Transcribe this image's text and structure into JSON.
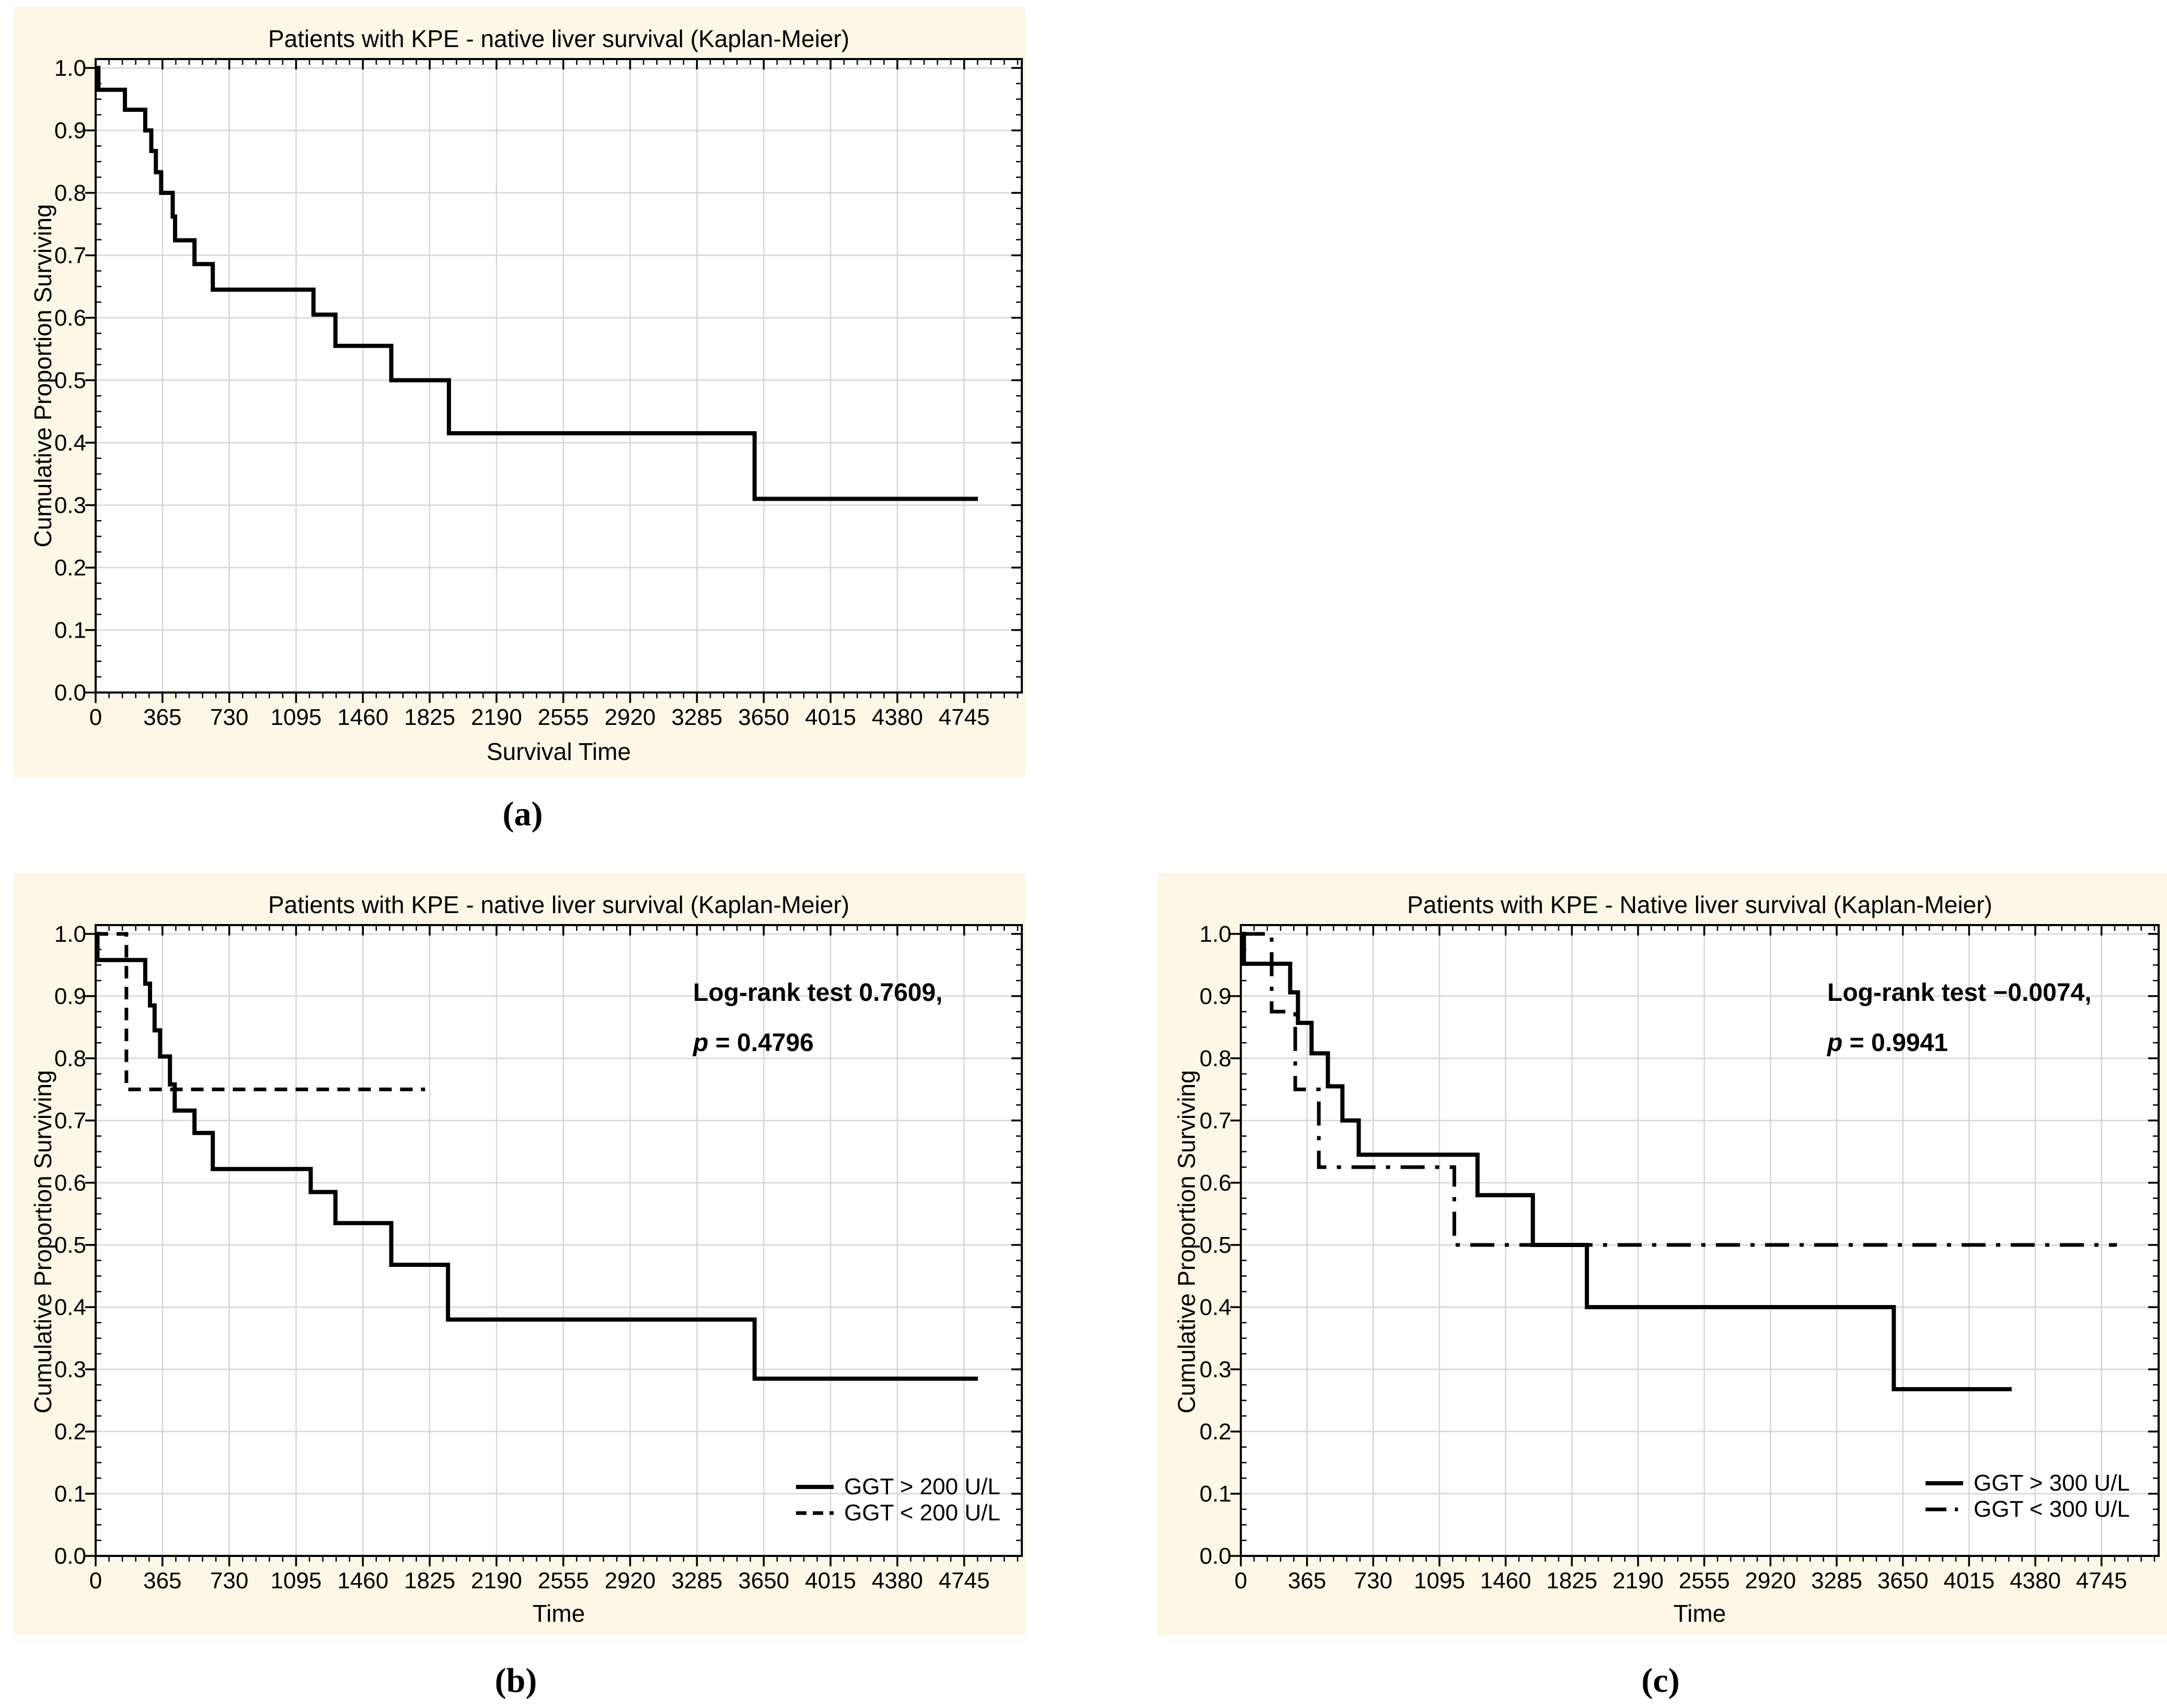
{
  "figure": {
    "panel_labels": [
      "(a)",
      "(b)",
      "(c)"
    ],
    "colors": {
      "page_background": "#ffffff",
      "panel_background": "#fcf7e7",
      "plot_background": "#ffffff",
      "grid": "#d6d6d6",
      "line": "#000000"
    }
  },
  "chart_data": [
    {
      "type": "line",
      "subtype": "kaplan-meier-step",
      "panel_label": "(a)",
      "title": "Patients with KPE - native liver survival (Kaplan-Meier)",
      "xlabel": "Survival Time",
      "ylabel": "Cumulative Proportion Surviving",
      "xlim": [
        0,
        5060
      ],
      "ylim": [
        0,
        1.0142
      ],
      "xticks": [
        0,
        365,
        730,
        1095,
        1460,
        1825,
        2190,
        2555,
        2920,
        3285,
        3650,
        4015,
        4380,
        4745
      ],
      "yticks": [
        0.0,
        0.1,
        0.2,
        0.3,
        0.4,
        0.5,
        0.6,
        0.7,
        0.8,
        0.9,
        1.0
      ],
      "x_minor_step": 73,
      "y_minor_step": 0.025,
      "grid": true,
      "legend": null,
      "annotation": null,
      "series": [
        {
          "style": "solid",
          "end_x": 4820,
          "points": [
            [
              0,
              1.0
            ],
            [
              15,
              0.965
            ],
            [
              160,
              0.933
            ],
            [
              271,
              0.9
            ],
            [
              304,
              0.867
            ],
            [
              329,
              0.833
            ],
            [
              358,
              0.8
            ],
            [
              421,
              0.762
            ],
            [
              434,
              0.724
            ],
            [
              540,
              0.686
            ],
            [
              640,
              0.645
            ],
            [
              1190,
              0.605
            ],
            [
              1310,
              0.555
            ],
            [
              1615,
              0.5
            ],
            [
              1930,
              0.415
            ],
            [
              3600,
              0.31
            ]
          ]
        }
      ]
    },
    {
      "type": "line",
      "subtype": "kaplan-meier-step",
      "panel_label": "(b)",
      "title": "Patients with KPE - native liver survival (Kaplan-Meier)",
      "xlabel": "Time",
      "ylabel": "Cumulative Proportion Surviving",
      "xlim": [
        0,
        5060
      ],
      "ylim": [
        0,
        1.0142
      ],
      "xticks": [
        0,
        365,
        730,
        1095,
        1460,
        1825,
        2190,
        2555,
        2920,
        3285,
        3650,
        4015,
        4380,
        4745
      ],
      "yticks": [
        0.0,
        0.1,
        0.2,
        0.3,
        0.4,
        0.5,
        0.6,
        0.7,
        0.8,
        0.9,
        1.0
      ],
      "x_minor_step": 73,
      "y_minor_step": 0.025,
      "grid": true,
      "annotation": {
        "line1": "Log-rank test  0.7609,",
        "p_symbol": "p",
        "line2": " = 0.4796"
      },
      "legend": {
        "entries": [
          {
            "label": "GGT > 200 U/L",
            "style": "solid"
          },
          {
            "label": "GGT < 200 U/L",
            "style": "dashed"
          }
        ]
      },
      "series": [
        {
          "name": "GGT > 200 U/L",
          "style": "solid",
          "end_x": 4820,
          "points": [
            [
              0,
              1.0
            ],
            [
              10,
              0.958
            ],
            [
              271,
              0.92
            ],
            [
              297,
              0.885
            ],
            [
              322,
              0.845
            ],
            [
              352,
              0.803
            ],
            [
              406,
              0.758
            ],
            [
              432,
              0.716
            ],
            [
              540,
              0.68
            ],
            [
              640,
              0.622
            ],
            [
              1175,
              0.585
            ],
            [
              1310,
              0.535
            ],
            [
              1615,
              0.468
            ],
            [
              1925,
              0.38
            ],
            [
              3600,
              0.285
            ]
          ]
        },
        {
          "name": "GGT < 200 U/L",
          "style": "dashed",
          "end_x": 1800,
          "points": [
            [
              0,
              1.0
            ],
            [
              168,
              0.75
            ]
          ]
        }
      ]
    },
    {
      "type": "line",
      "subtype": "kaplan-meier-step",
      "panel_label": "(c)",
      "title": "Patients with KPE - Native liver survival (Kaplan-Meier)",
      "xlabel": "Time",
      "ylabel": "Cumulative Proportion Surviving",
      "xlim": [
        0,
        5060
      ],
      "ylim": [
        0,
        1.0142
      ],
      "xticks": [
        0,
        365,
        730,
        1095,
        1460,
        1825,
        2190,
        2555,
        2920,
        3285,
        3650,
        4015,
        4380,
        4745
      ],
      "yticks": [
        0.0,
        0.1,
        0.2,
        0.3,
        0.4,
        0.5,
        0.6,
        0.7,
        0.8,
        0.9,
        1.0
      ],
      "x_minor_step": 73,
      "y_minor_step": 0.025,
      "grid": true,
      "annotation": {
        "line1": "Log-rank test  −0.0074,",
        "p_symbol": "p",
        "line2": " = 0.9941"
      },
      "legend": {
        "entries": [
          {
            "label": "GGT > 300 U/L",
            "style": "solid"
          },
          {
            "label": "GGT < 300 U/L",
            "style": "dashdot"
          }
        ]
      },
      "series": [
        {
          "name": "GGT > 300 U/L",
          "style": "solid",
          "end_x": 4250,
          "points": [
            [
              0,
              1.0
            ],
            [
              17,
              0.952
            ],
            [
              272,
              0.906
            ],
            [
              315,
              0.857
            ],
            [
              390,
              0.808
            ],
            [
              480,
              0.755
            ],
            [
              560,
              0.7
            ],
            [
              650,
              0.645
            ],
            [
              1305,
              0.58
            ],
            [
              1610,
              0.5
            ],
            [
              1908,
              0.4
            ],
            [
              3600,
              0.268
            ]
          ]
        },
        {
          "name": "GGT < 300 U/L",
          "style": "dashdot",
          "end_x": 4830,
          "points": [
            [
              0,
              1.0
            ],
            [
              170,
              0.875
            ],
            [
              300,
              0.75
            ],
            [
              430,
              0.625
            ],
            [
              1177,
              0.5
            ]
          ]
        }
      ]
    }
  ]
}
